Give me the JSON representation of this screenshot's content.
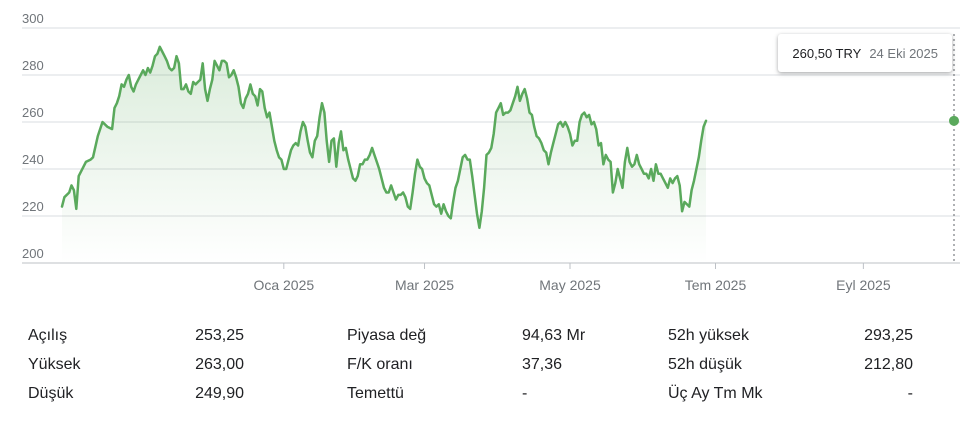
{
  "tooltip": {
    "price": "260,50 TRY",
    "date": "24 Eki 2025"
  },
  "colors": {
    "line": "#5aa95c",
    "grid": "#dadce0",
    "axis": "#70757a"
  },
  "chart_data": {
    "type": "area",
    "ylim": [
      200,
      300
    ],
    "y_ticks": [
      200,
      220,
      240,
      260,
      280,
      300
    ],
    "x_ticks": [
      {
        "label": "Oca 2025",
        "x": 93
      },
      {
        "label": "Mar 2025",
        "x": 152
      },
      {
        "label": "May 2025",
        "x": 213
      },
      {
        "label": "Tem 2025",
        "x": 274
      },
      {
        "label": "Eyl 2025",
        "x": 336
      }
    ],
    "current": {
      "x": 374,
      "y": 260.5
    },
    "grid": true,
    "series": [
      {
        "points": [
          [
            0,
            224
          ],
          [
            1,
            228
          ],
          [
            3,
            230
          ],
          [
            4,
            233
          ],
          [
            5,
            231
          ],
          [
            6,
            223
          ],
          [
            7,
            237
          ],
          [
            9,
            241
          ],
          [
            10,
            243
          ],
          [
            12,
            244
          ],
          [
            13,
            245
          ],
          [
            15,
            254
          ],
          [
            17,
            260
          ],
          [
            19,
            258
          ],
          [
            21,
            257
          ],
          [
            22,
            266
          ],
          [
            23,
            268
          ],
          [
            24,
            271
          ],
          [
            25,
            276
          ],
          [
            26,
            275
          ],
          [
            27,
            278
          ],
          [
            28,
            280
          ],
          [
            29,
            275
          ],
          [
            30,
            273
          ],
          [
            31,
            276
          ],
          [
            32,
            278
          ],
          [
            33,
            280
          ],
          [
            34,
            282
          ],
          [
            35,
            280
          ],
          [
            36,
            283
          ],
          [
            37,
            281
          ],
          [
            38,
            284
          ],
          [
            39,
            288
          ],
          [
            40,
            289
          ],
          [
            41,
            292
          ],
          [
            42,
            290
          ],
          [
            43,
            288
          ],
          [
            44,
            286
          ],
          [
            45,
            283
          ],
          [
            46,
            282
          ],
          [
            47,
            283
          ],
          [
            48,
            288
          ],
          [
            49,
            285
          ],
          [
            50,
            274
          ],
          [
            51,
            274
          ],
          [
            52,
            276
          ],
          [
            53,
            273
          ],
          [
            54,
            272
          ],
          [
            55,
            277
          ],
          [
            56,
            276
          ],
          [
            57,
            277
          ],
          [
            58,
            278
          ],
          [
            59,
            285
          ],
          [
            60,
            274
          ],
          [
            61,
            269
          ],
          [
            62,
            274
          ],
          [
            63,
            278
          ],
          [
            64,
            286
          ],
          [
            65,
            284
          ],
          [
            66,
            282
          ],
          [
            67,
            286
          ],
          [
            68,
            286
          ],
          [
            69,
            285
          ],
          [
            70,
            279
          ],
          [
            71,
            280
          ],
          [
            72,
            282
          ],
          [
            73,
            279
          ],
          [
            74,
            275
          ],
          [
            75,
            268
          ],
          [
            76,
            266
          ],
          [
            77,
            270
          ],
          [
            78,
            272
          ],
          [
            79,
            276
          ],
          [
            80,
            272
          ],
          [
            81,
            271
          ],
          [
            82,
            267
          ],
          [
            83,
            274
          ],
          [
            84,
            273
          ],
          [
            85,
            266
          ],
          [
            86,
            262
          ],
          [
            87,
            264
          ],
          [
            88,
            258
          ],
          [
            89,
            252
          ],
          [
            90,
            248
          ],
          [
            91,
            245
          ],
          [
            92,
            244
          ],
          [
            93,
            240
          ],
          [
            94,
            240
          ],
          [
            95,
            244
          ],
          [
            96,
            248
          ],
          [
            97,
            250
          ],
          [
            98,
            251
          ],
          [
            99,
            250
          ],
          [
            100,
            256
          ],
          [
            101,
            260
          ],
          [
            102,
            258
          ],
          [
            103,
            252
          ],
          [
            104,
            247
          ],
          [
            105,
            245
          ],
          [
            106,
            252
          ],
          [
            107,
            254
          ],
          [
            108,
            262
          ],
          [
            109,
            268
          ],
          [
            110,
            264
          ],
          [
            111,
            252
          ],
          [
            112,
            243
          ],
          [
            113,
            252
          ],
          [
            114,
            253
          ],
          [
            115,
            241
          ],
          [
            116,
            251
          ],
          [
            117,
            256
          ],
          [
            118,
            248
          ],
          [
            119,
            249
          ],
          [
            120,
            244
          ],
          [
            121,
            240
          ],
          [
            122,
            236
          ],
          [
            123,
            235
          ],
          [
            124,
            237
          ],
          [
            125,
            242
          ],
          [
            126,
            242
          ],
          [
            127,
            244
          ],
          [
            128,
            244
          ],
          [
            129,
            246
          ],
          [
            130,
            249
          ],
          [
            131,
            246
          ],
          [
            132,
            243
          ],
          [
            133,
            240
          ],
          [
            134,
            236
          ],
          [
            135,
            232
          ],
          [
            136,
            230
          ],
          [
            137,
            230
          ],
          [
            138,
            233
          ],
          [
            139,
            230
          ],
          [
            140,
            227
          ],
          [
            141,
            229
          ],
          [
            142,
            229
          ],
          [
            143,
            230
          ],
          [
            144,
            228
          ],
          [
            145,
            224
          ],
          [
            146,
            223
          ],
          [
            147,
            230
          ],
          [
            148,
            238
          ],
          [
            149,
            244
          ],
          [
            150,
            241
          ],
          [
            151,
            240
          ],
          [
            152,
            236
          ],
          [
            153,
            234
          ],
          [
            154,
            233
          ],
          [
            155,
            229
          ],
          [
            156,
            225
          ],
          [
            157,
            224
          ],
          [
            158,
            225
          ],
          [
            159,
            221
          ],
          [
            160,
            225
          ],
          [
            161,
            222
          ],
          [
            162,
            220
          ],
          [
            163,
            219
          ],
          [
            164,
            226
          ],
          [
            165,
            232
          ],
          [
            166,
            235
          ],
          [
            167,
            240
          ],
          [
            168,
            245
          ],
          [
            169,
            246
          ],
          [
            170,
            244
          ],
          [
            171,
            244
          ],
          [
            172,
            237
          ],
          [
            173,
            229
          ],
          [
            174,
            221
          ],
          [
            175,
            215
          ],
          [
            176,
            222
          ],
          [
            177,
            232
          ],
          [
            178,
            246
          ],
          [
            179,
            247
          ],
          [
            180,
            249
          ],
          [
            181,
            255
          ],
          [
            182,
            264
          ],
          [
            183,
            266
          ],
          [
            184,
            268
          ],
          [
            185,
            263
          ],
          [
            186,
            264
          ],
          [
            187,
            264
          ],
          [
            188,
            265
          ],
          [
            189,
            268
          ],
          [
            190,
            271
          ],
          [
            191,
            275
          ],
          [
            192,
            269
          ],
          [
            193,
            272
          ],
          [
            194,
            274
          ],
          [
            195,
            270
          ],
          [
            196,
            264
          ],
          [
            197,
            263
          ],
          [
            198,
            258
          ],
          [
            199,
            254
          ],
          [
            200,
            253
          ],
          [
            201,
            251
          ],
          [
            202,
            248
          ],
          [
            203,
            247
          ],
          [
            204,
            242
          ],
          [
            205,
            247
          ],
          [
            206,
            251
          ],
          [
            207,
            255
          ],
          [
            208,
            259
          ],
          [
            209,
            260
          ],
          [
            210,
            258
          ],
          [
            211,
            260
          ],
          [
            212,
            258
          ],
          [
            213,
            255
          ],
          [
            214,
            250
          ],
          [
            215,
            252
          ],
          [
            216,
            252
          ],
          [
            217,
            260
          ],
          [
            218,
            263
          ],
          [
            219,
            264
          ],
          [
            220,
            262
          ],
          [
            221,
            263
          ],
          [
            222,
            259
          ],
          [
            223,
            260
          ],
          [
            224,
            257
          ],
          [
            225,
            250
          ],
          [
            226,
            251
          ],
          [
            227,
            242
          ],
          [
            228,
            246
          ],
          [
            229,
            244
          ],
          [
            230,
            243
          ],
          [
            231,
            230
          ],
          [
            232,
            234
          ],
          [
            233,
            240
          ],
          [
            234,
            236
          ],
          [
            235,
            232
          ],
          [
            236,
            243
          ],
          [
            237,
            249
          ],
          [
            238,
            243
          ],
          [
            239,
            241
          ],
          [
            240,
            242
          ],
          [
            241,
            246
          ],
          [
            242,
            242
          ],
          [
            243,
            240
          ],
          [
            244,
            238
          ],
          [
            245,
            238
          ],
          [
            246,
            236
          ],
          [
            247,
            240
          ],
          [
            248,
            235
          ],
          [
            249,
            242
          ],
          [
            250,
            238
          ],
          [
            251,
            238
          ],
          [
            252,
            236
          ],
          [
            253,
            234
          ],
          [
            254,
            232
          ],
          [
            255,
            236
          ],
          [
            256,
            234
          ],
          [
            257,
            236
          ],
          [
            258,
            237
          ],
          [
            259,
            233
          ],
          [
            260,
            222
          ],
          [
            261,
            226
          ],
          [
            262,
            225
          ],
          [
            263,
            224
          ],
          [
            264,
            231
          ],
          [
            265,
            235
          ],
          [
            266,
            240
          ],
          [
            267,
            245
          ],
          [
            268,
            252
          ],
          [
            269,
            258
          ],
          [
            270,
            260.5
          ]
        ]
      }
    ]
  },
  "stats": [
    [
      {
        "label": "Açılış",
        "value": "253,25"
      },
      {
        "label": "Piyasa değ",
        "value": "94,63 Mr"
      },
      {
        "label": "52h yüksek",
        "value": "293,25"
      }
    ],
    [
      {
        "label": "Yüksek",
        "value": "263,00"
      },
      {
        "label": "F/K oranı",
        "value": "37,36"
      },
      {
        "label": "52h düşük",
        "value": "212,80"
      }
    ],
    [
      {
        "label": "Düşük",
        "value": "249,90"
      },
      {
        "label": "Temettü",
        "value": "-"
      },
      {
        "label": "Üç Ay Tm Mk",
        "value": "-"
      }
    ]
  ]
}
